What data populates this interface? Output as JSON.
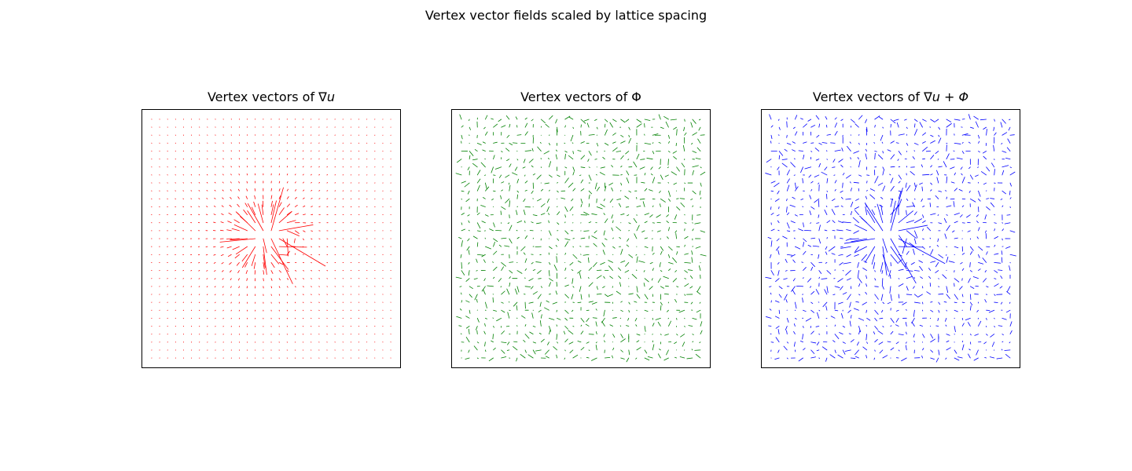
{
  "suptitle": "Vertex vector fields scaled by lattice spacing",
  "chart_data": [
    {
      "type": "quiver",
      "title_prefix": "Vertex vectors of ",
      "title_math": "∇u",
      "color": "#ff0000",
      "field": "gradient",
      "grid": false,
      "axes_ticks": false,
      "lattice": {
        "nx": 31,
        "ny": 31,
        "xlim": [
          0,
          30
        ],
        "ylim": [
          0,
          30
        ]
      },
      "sources": [
        {
          "x": 15.0,
          "y": 15.5,
          "strength": 1.0
        },
        {
          "x": 13.5,
          "y": 15.0,
          "strength": 0.6
        },
        {
          "x": 16.5,
          "y": 14.5,
          "strength": -0.5
        }
      ]
    },
    {
      "type": "quiver",
      "title_prefix": "Vertex vectors of ",
      "title_math": "Φ",
      "color": "#008000",
      "field": "random",
      "grid": false,
      "axes_ticks": false,
      "lattice": {
        "nx": 31,
        "ny": 31,
        "xlim": [
          0,
          30
        ],
        "ylim": [
          0,
          30
        ]
      },
      "noise_amplitude": 1.0
    },
    {
      "type": "quiver",
      "title_prefix": "Vertex vectors of ",
      "title_math": "∇u + Φ",
      "color": "#0000ff",
      "field": "sum",
      "grid": false,
      "axes_ticks": false,
      "lattice": {
        "nx": 31,
        "ny": 31,
        "xlim": [
          0,
          30
        ],
        "ylim": [
          0,
          30
        ]
      }
    }
  ]
}
